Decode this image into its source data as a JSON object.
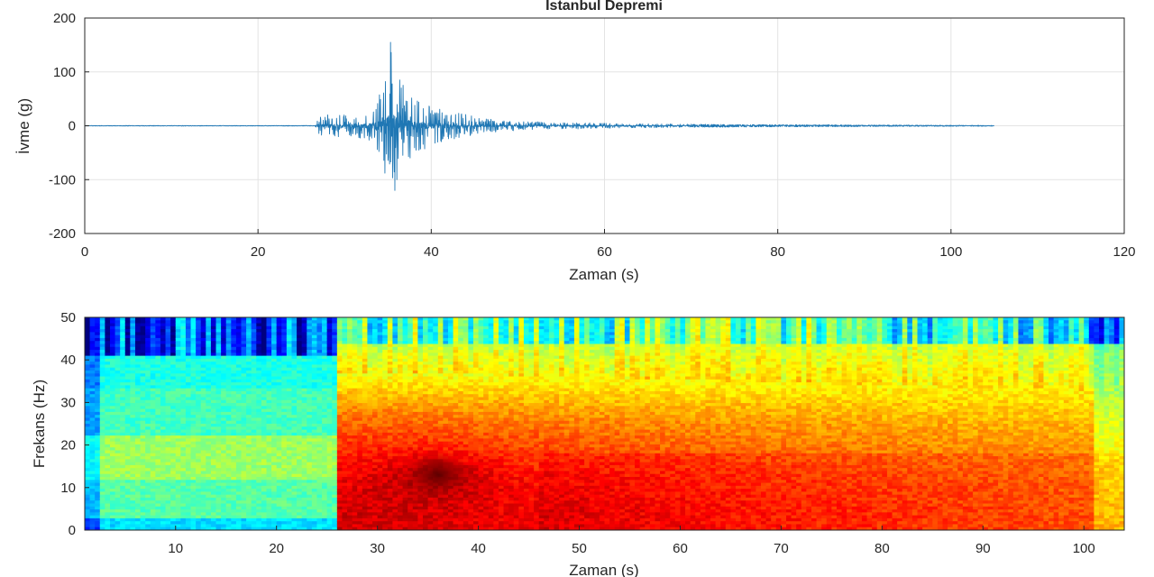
{
  "chart_data": [
    {
      "type": "line",
      "title": "İstanbul Depremi",
      "xlabel": "Zaman (s)",
      "ylabel": "İvme (g)",
      "xlim": [
        0,
        120
      ],
      "ylim": [
        -200,
        200
      ],
      "x_ticks": [
        0,
        20,
        40,
        60,
        80,
        100,
        120
      ],
      "y_ticks": [
        200,
        100,
        0,
        -100,
        -200
      ],
      "grid": true,
      "color": "#1f77b4",
      "signal_duration_s": 105,
      "onset_s": 27,
      "peak": {
        "x": 35.3,
        "y": 155
      },
      "trough": {
        "x": 35.8,
        "y": -120
      },
      "series": [
        {
          "envelope": [
            [
              0,
              0.5
            ],
            [
              26.5,
              0.5
            ],
            [
              27,
              18
            ],
            [
              28,
              22
            ],
            [
              30,
              22
            ],
            [
              32,
              24
            ],
            [
              33.5,
              40
            ],
            [
              34.5,
              85
            ],
            [
              35.3,
              150
            ],
            [
              36,
              110
            ],
            [
              37,
              75
            ],
            [
              38,
              55
            ],
            [
              40,
              40
            ],
            [
              42,
              28
            ],
            [
              44,
              22
            ],
            [
              46,
              14
            ],
            [
              50,
              9
            ],
            [
              55,
              7
            ],
            [
              60,
              5
            ],
            [
              65,
              4
            ],
            [
              70,
              3
            ],
            [
              80,
              2
            ],
            [
              90,
              1.5
            ],
            [
              100,
              1
            ],
            [
              105,
              0.8
            ]
          ]
        }
      ]
    },
    {
      "type": "heatmap",
      "title": "",
      "xlabel": "Zaman (s)",
      "ylabel": "Frekans (Hz)",
      "xlim": [
        1,
        104
      ],
      "ylim": [
        0,
        50
      ],
      "x_ticks": [
        10,
        20,
        30,
        40,
        50,
        60,
        70,
        80,
        90,
        100
      ],
      "y_ticks": [
        50,
        40,
        30,
        20,
        10,
        0
      ],
      "colormap": "jet",
      "onset_s": 26,
      "hotspot": {
        "time_s": 36,
        "freq_hz": 13
      }
    }
  ]
}
